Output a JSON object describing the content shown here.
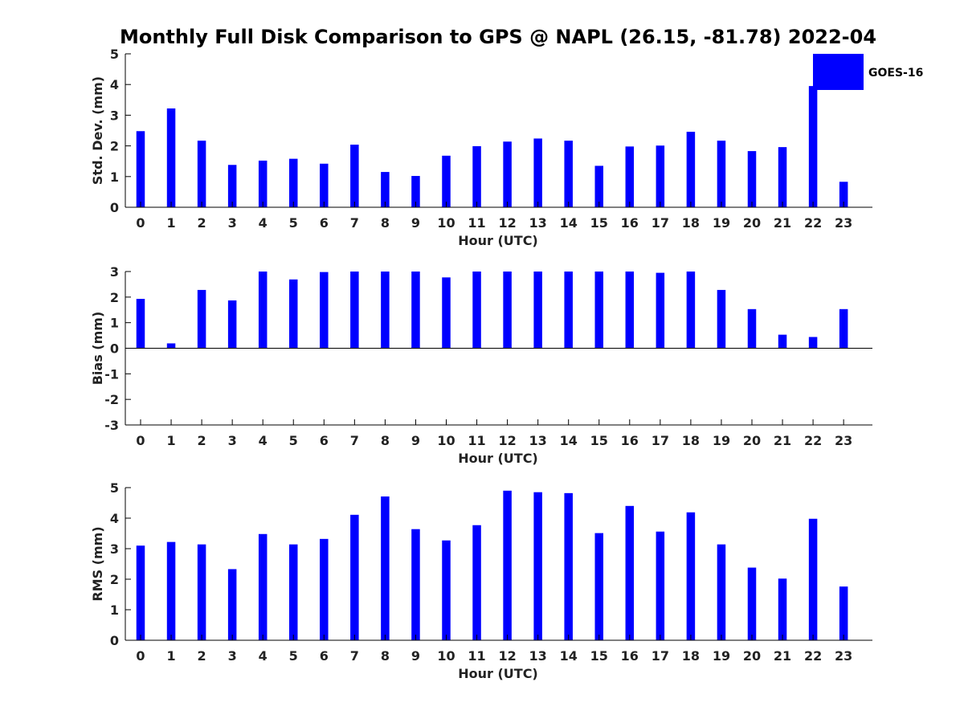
{
  "figure": {
    "title": "Monthly Full Disk Comparison to GPS @ NAPL (26.15, -81.78) 2022-04"
  },
  "legend": {
    "label": "GOES-16",
    "color": "#0000ff",
    "placement": "top-right"
  },
  "chart_data": [
    {
      "type": "bar",
      "xlabel": "Hour (UTC)",
      "ylabel": "Std. Dev. (mm)",
      "ylim": [
        0,
        5
      ],
      "yticks": [
        0,
        1,
        2,
        3,
        4,
        5
      ],
      "categories": [
        "0",
        "1",
        "2",
        "3",
        "4",
        "5",
        "6",
        "7",
        "8",
        "9",
        "10",
        "11",
        "12",
        "13",
        "14",
        "15",
        "16",
        "17",
        "18",
        "19",
        "20",
        "21",
        "22",
        "23"
      ],
      "series": [
        {
          "name": "GOES-16",
          "color": "#0000ff",
          "values": [
            2.48,
            3.22,
            2.17,
            1.38,
            1.52,
            1.58,
            1.42,
            2.04,
            1.15,
            1.02,
            1.68,
            1.99,
            2.14,
            2.24,
            2.17,
            1.35,
            1.98,
            2.01,
            2.46,
            2.17,
            1.83,
            1.96,
            3.95,
            0.83
          ]
        }
      ],
      "grid": false,
      "legend": "top-right"
    },
    {
      "type": "bar",
      "xlabel": "Hour (UTC)",
      "ylabel": "Bias (mm)",
      "ylim": [
        -3,
        3
      ],
      "yticks": [
        -3,
        -2,
        -1,
        0,
        1,
        2,
        3
      ],
      "categories": [
        "0",
        "1",
        "2",
        "3",
        "4",
        "5",
        "6",
        "7",
        "8",
        "9",
        "10",
        "11",
        "12",
        "13",
        "14",
        "15",
        "16",
        "17",
        "18",
        "19",
        "20",
        "21",
        "22",
        "23"
      ],
      "series": [
        {
          "name": "GOES-16",
          "color": "#0000ff",
          "values": [
            1.93,
            0.19,
            2.28,
            1.87,
            3.0,
            2.69,
            2.98,
            3.0,
            3.0,
            3.0,
            2.77,
            3.0,
            3.0,
            3.0,
            3.0,
            3.0,
            3.0,
            2.95,
            3.0,
            2.28,
            1.53,
            0.53,
            0.44,
            1.53
          ]
        }
      ],
      "zero_line": true,
      "grid": false
    },
    {
      "type": "bar",
      "xlabel": "Hour (UTC)",
      "ylabel": "RMS (mm)",
      "ylim": [
        0,
        5
      ],
      "yticks": [
        0,
        1,
        2,
        3,
        4,
        5
      ],
      "categories": [
        "0",
        "1",
        "2",
        "3",
        "4",
        "5",
        "6",
        "7",
        "8",
        "9",
        "10",
        "11",
        "12",
        "13",
        "14",
        "15",
        "16",
        "17",
        "18",
        "19",
        "20",
        "21",
        "22",
        "23"
      ],
      "series": [
        {
          "name": "GOES-16",
          "color": "#0000ff",
          "values": [
            3.1,
            3.22,
            3.14,
            2.33,
            3.48,
            3.14,
            3.32,
            4.11,
            4.71,
            3.64,
            3.27,
            3.77,
            4.9,
            4.85,
            4.82,
            3.51,
            4.4,
            3.56,
            4.19,
            3.14,
            2.38,
            2.02,
            3.98,
            1.76
          ]
        }
      ],
      "grid": false
    }
  ]
}
